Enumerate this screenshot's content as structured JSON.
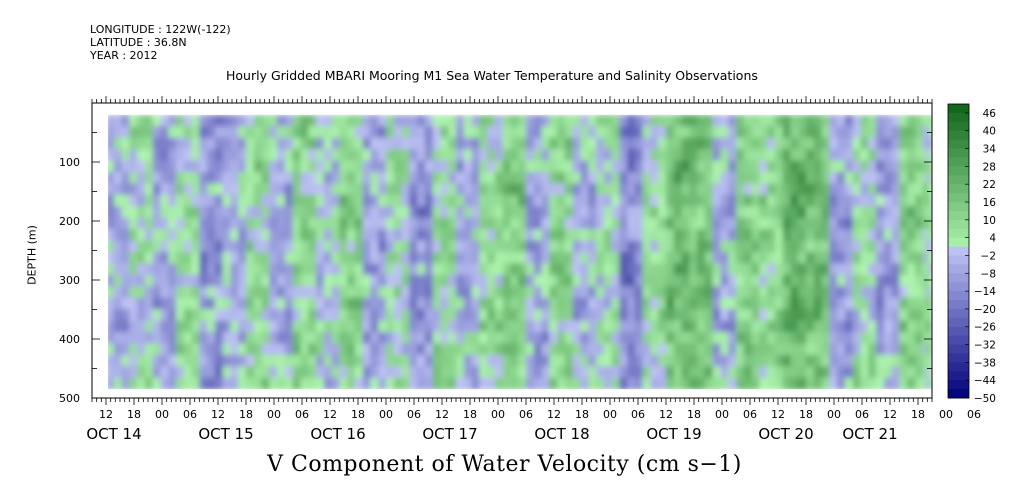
{
  "header": {
    "longitude": "LONGITUDE : 122W(-122)",
    "latitude": "LATITUDE : 36.8N",
    "year": "YEAR : 2012"
  },
  "chart_data": {
    "type": "heatmap",
    "title": "Hourly Gridded MBARI Mooring M1 Sea Water Temperature and Salinity Observations",
    "variable_label": "V Component of Water Velocity (cm s−1)",
    "ylabel": "DEPTH (m)",
    "ylim": [
      500,
      0
    ],
    "y_reversed": true,
    "y_ticks": [
      100,
      200,
      300,
      400,
      500
    ],
    "y_data_range": [
      20,
      485
    ],
    "x_start_hour_label": "OCT 14 09",
    "x_axis_hours": 180,
    "x_data_start_hour": 3,
    "x_data_end_hour": 180,
    "x_hour_labels": [
      "12",
      "18",
      "00",
      "06",
      "12",
      "18",
      "00",
      "06",
      "12",
      "18",
      "00",
      "06",
      "12",
      "18",
      "00",
      "06",
      "12",
      "18",
      "00",
      "06",
      "12",
      "18",
      "00",
      "06",
      "12",
      "18",
      "00",
      "06",
      "12",
      "18",
      "00",
      "06"
    ],
    "x_hour_label_start_hour": 3,
    "x_hour_label_step": 6,
    "x_date_labels": [
      {
        "label": "OCT 14",
        "hour": 3
      },
      {
        "label": "OCT 15",
        "hour": 27
      },
      {
        "label": "OCT 16",
        "hour": 51
      },
      {
        "label": "OCT 17",
        "hour": 75
      },
      {
        "label": "OCT 18",
        "hour": 99
      },
      {
        "label": "OCT 19",
        "hour": 123
      },
      {
        "label": "OCT 20",
        "hour": 147
      },
      {
        "label": "OCT 21",
        "hour": 165
      }
    ],
    "colorbar": {
      "labels": [
        "46",
        "40",
        "34",
        "28",
        "22",
        "16",
        "10",
        "4",
        "-2",
        "-8",
        "-14",
        "-20",
        "-26",
        "-32",
        "-38",
        "-44",
        "-50"
      ],
      "min": -50,
      "max": 49,
      "step": 3
    },
    "columns": {
      "hours_sampled": [
        3,
        8,
        13,
        18,
        23,
        28,
        33,
        38,
        43,
        48,
        53,
        58,
        63,
        68,
        73,
        78,
        83,
        88,
        93,
        98,
        103,
        108,
        113,
        118,
        123,
        128,
        133,
        138,
        143,
        148,
        153,
        158,
        163,
        168,
        173,
        178
      ],
      "mean_v": [
        -5,
        3,
        -8,
        6,
        -10,
        -4,
        8,
        -6,
        10,
        -2,
        12,
        -8,
        4,
        -12,
        6,
        -4,
        8,
        14,
        -6,
        10,
        -4,
        2,
        -14,
        6,
        20,
        16,
        -6,
        12,
        8,
        22,
        18,
        -10,
        4,
        -8,
        12,
        6
      ]
    }
  }
}
